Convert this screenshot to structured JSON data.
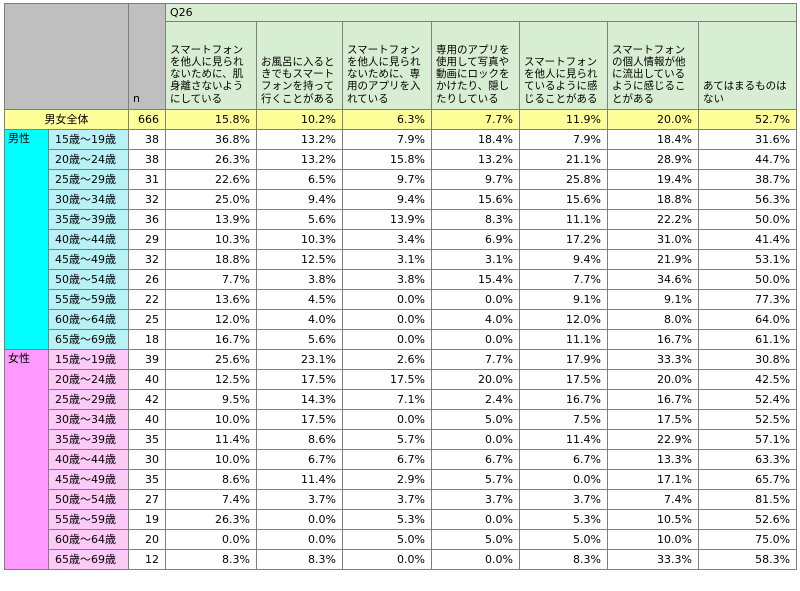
{
  "question": "Q26",
  "n_label": "n",
  "columns": [
    "スマートフォンを他人に見られないために、肌身離さないようにしている",
    "お風呂に入るときでもスマートフォンを持って行くことがある",
    "スマートフォンを他人に見られないために、専用のアプリを入れている",
    "専用のアプリを使用して写真や動画にロックをかけたり、隠したりしている",
    "スマートフォンを他人に見られているように感じることがある",
    "スマートフォンの個人情報が他に流出しているように感じることがある",
    "あてはまるものはない"
  ],
  "total": {
    "label": "男女全体",
    "n": "666",
    "values": [
      "15.8%",
      "10.2%",
      "6.3%",
      "7.7%",
      "11.9%",
      "20.0%",
      "52.7%"
    ]
  },
  "groups": [
    {
      "label": "男性",
      "rows": [
        {
          "age": "15歳～19歳",
          "n": "38",
          "values": [
            "36.8%",
            "13.2%",
            "7.9%",
            "18.4%",
            "7.9%",
            "18.4%",
            "31.6%"
          ]
        },
        {
          "age": "20歳～24歳",
          "n": "38",
          "values": [
            "26.3%",
            "13.2%",
            "15.8%",
            "13.2%",
            "21.1%",
            "28.9%",
            "44.7%"
          ]
        },
        {
          "age": "25歳～29歳",
          "n": "31",
          "values": [
            "22.6%",
            "6.5%",
            "9.7%",
            "9.7%",
            "25.8%",
            "19.4%",
            "38.7%"
          ]
        },
        {
          "age": "30歳～34歳",
          "n": "32",
          "values": [
            "25.0%",
            "9.4%",
            "9.4%",
            "15.6%",
            "15.6%",
            "18.8%",
            "56.3%"
          ]
        },
        {
          "age": "35歳～39歳",
          "n": "36",
          "values": [
            "13.9%",
            "5.6%",
            "13.9%",
            "8.3%",
            "11.1%",
            "22.2%",
            "50.0%"
          ]
        },
        {
          "age": "40歳～44歳",
          "n": "29",
          "values": [
            "10.3%",
            "10.3%",
            "3.4%",
            "6.9%",
            "17.2%",
            "31.0%",
            "41.4%"
          ]
        },
        {
          "age": "45歳～49歳",
          "n": "32",
          "values": [
            "18.8%",
            "12.5%",
            "3.1%",
            "3.1%",
            "9.4%",
            "21.9%",
            "53.1%"
          ]
        },
        {
          "age": "50歳～54歳",
          "n": "26",
          "values": [
            "7.7%",
            "3.8%",
            "3.8%",
            "15.4%",
            "7.7%",
            "34.6%",
            "50.0%"
          ]
        },
        {
          "age": "55歳～59歳",
          "n": "22",
          "values": [
            "13.6%",
            "4.5%",
            "0.0%",
            "0.0%",
            "9.1%",
            "9.1%",
            "77.3%"
          ]
        },
        {
          "age": "60歳～64歳",
          "n": "25",
          "values": [
            "12.0%",
            "4.0%",
            "0.0%",
            "4.0%",
            "12.0%",
            "8.0%",
            "64.0%"
          ]
        },
        {
          "age": "65歳～69歳",
          "n": "18",
          "values": [
            "16.7%",
            "5.6%",
            "0.0%",
            "0.0%",
            "11.1%",
            "16.7%",
            "61.1%"
          ]
        }
      ]
    },
    {
      "label": "女性",
      "rows": [
        {
          "age": "15歳～19歳",
          "n": "39",
          "values": [
            "25.6%",
            "23.1%",
            "2.6%",
            "7.7%",
            "17.9%",
            "33.3%",
            "30.8%"
          ]
        },
        {
          "age": "20歳～24歳",
          "n": "40",
          "values": [
            "12.5%",
            "17.5%",
            "17.5%",
            "20.0%",
            "17.5%",
            "20.0%",
            "42.5%"
          ]
        },
        {
          "age": "25歳～29歳",
          "n": "42",
          "values": [
            "9.5%",
            "14.3%",
            "7.1%",
            "2.4%",
            "16.7%",
            "16.7%",
            "52.4%"
          ]
        },
        {
          "age": "30歳～34歳",
          "n": "40",
          "values": [
            "10.0%",
            "17.5%",
            "0.0%",
            "5.0%",
            "7.5%",
            "17.5%",
            "52.5%"
          ]
        },
        {
          "age": "35歳～39歳",
          "n": "35",
          "values": [
            "11.4%",
            "8.6%",
            "5.7%",
            "0.0%",
            "11.4%",
            "22.9%",
            "57.1%"
          ]
        },
        {
          "age": "40歳～44歳",
          "n": "30",
          "values": [
            "10.0%",
            "6.7%",
            "6.7%",
            "6.7%",
            "6.7%",
            "13.3%",
            "63.3%"
          ]
        },
        {
          "age": "45歳～49歳",
          "n": "35",
          "values": [
            "8.6%",
            "11.4%",
            "2.9%",
            "5.7%",
            "0.0%",
            "17.1%",
            "65.7%"
          ]
        },
        {
          "age": "50歳～54歳",
          "n": "27",
          "values": [
            "7.4%",
            "3.7%",
            "3.7%",
            "3.7%",
            "3.7%",
            "7.4%",
            "81.5%"
          ]
        },
        {
          "age": "55歳～59歳",
          "n": "19",
          "values": [
            "26.3%",
            "0.0%",
            "5.3%",
            "0.0%",
            "5.3%",
            "10.5%",
            "52.6%"
          ]
        },
        {
          "age": "60歳～64歳",
          "n": "20",
          "values": [
            "0.0%",
            "0.0%",
            "5.0%",
            "5.0%",
            "5.0%",
            "10.0%",
            "75.0%"
          ]
        },
        {
          "age": "65歳～69歳",
          "n": "12",
          "values": [
            "8.3%",
            "8.3%",
            "0.0%",
            "0.0%",
            "8.3%",
            "33.3%",
            "58.3%"
          ]
        }
      ]
    }
  ]
}
